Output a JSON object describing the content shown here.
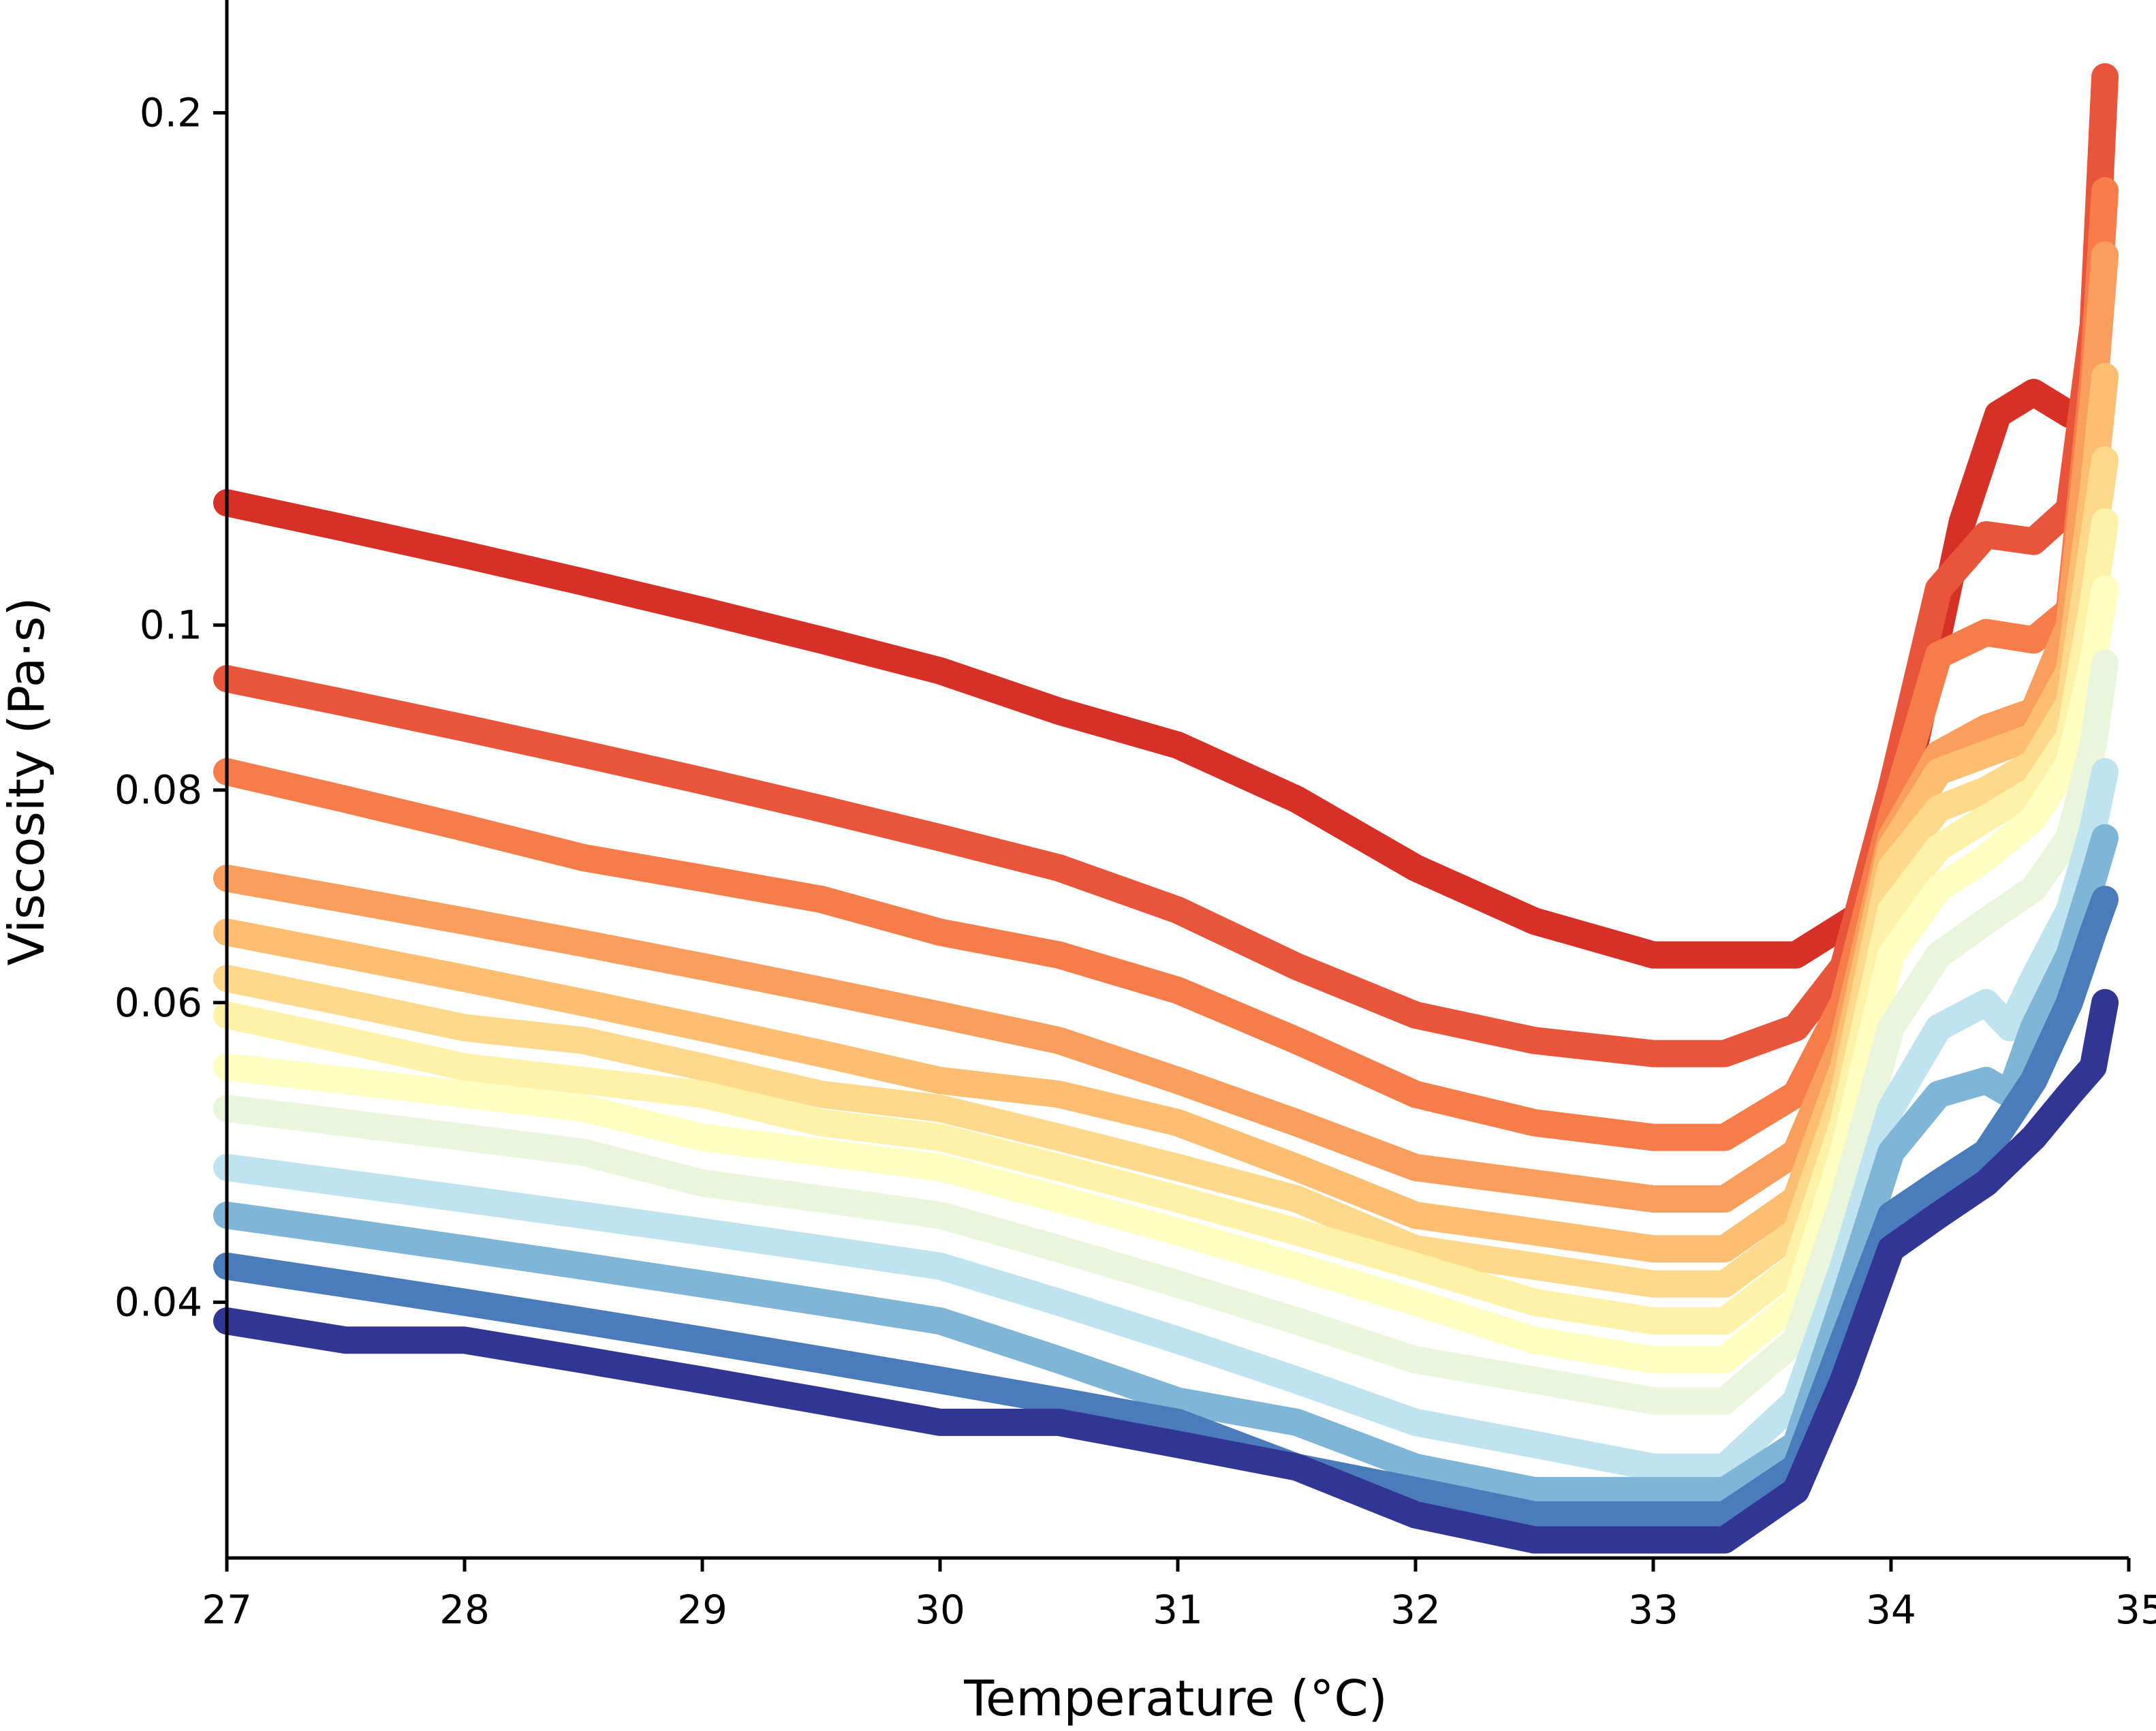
{
  "chart_data": {
    "type": "line",
    "title": "",
    "xlabel": "Temperature (°C)",
    "ylabel": "Viscosity (Pa·s)",
    "xlim": [
      27,
      35
    ],
    "ylim": [
      0.0283,
      0.233
    ],
    "yscale": "log",
    "grid": false,
    "legend": "none",
    "xticks": [
      27,
      28,
      29,
      30,
      31,
      32,
      33,
      34,
      35
    ],
    "xtick_labels": [
      "27",
      "28",
      "29",
      "30",
      "31",
      "32",
      "33",
      "34",
      "35"
    ],
    "yticks": [
      0.04,
      0.06,
      0.08,
      0.1,
      0.2
    ],
    "ytick_labels": [
      "0.04",
      "0.06",
      "0.08",
      "0.1",
      "0.2"
    ],
    "series": [
      {
        "color": "#d73027",
        "x": [
          27.0,
          27.5,
          28.0,
          28.5,
          29.0,
          29.5,
          30.0,
          30.5,
          31.0,
          31.5,
          32.0,
          32.5,
          33.0,
          33.3,
          33.6,
          33.9,
          34.1,
          34.3,
          34.45,
          34.6,
          34.75,
          34.85
        ],
        "y": [
          0.118,
          0.114,
          0.11,
          0.106,
          0.102,
          0.098,
          0.094,
          0.089,
          0.085,
          0.079,
          0.072,
          0.067,
          0.064,
          0.064,
          0.064,
          0.068,
          0.085,
          0.115,
          0.133,
          0.137,
          0.133,
          0.133
        ]
      },
      {
        "color": "#e8553a",
        "x": [
          27.0,
          27.5,
          28.0,
          28.5,
          29.0,
          29.5,
          30.0,
          30.5,
          31.0,
          31.5,
          32.0,
          32.5,
          33.0,
          33.3,
          33.6,
          33.8,
          34.0,
          34.2,
          34.4,
          34.6,
          34.75,
          34.85,
          34.9
        ],
        "y": [
          0.093,
          0.09,
          0.087,
          0.084,
          0.081,
          0.078,
          0.075,
          0.072,
          0.068,
          0.063,
          0.059,
          0.057,
          0.056,
          0.056,
          0.058,
          0.063,
          0.08,
          0.105,
          0.113,
          0.112,
          0.117,
          0.15,
          0.21
        ]
      },
      {
        "color": "#f67c4a",
        "x": [
          27.0,
          27.5,
          28.0,
          28.5,
          29.0,
          29.5,
          30.0,
          30.5,
          31.0,
          31.5,
          32.0,
          32.5,
          33.0,
          33.3,
          33.6,
          33.8,
          34.0,
          34.2,
          34.4,
          34.6,
          34.75,
          34.85,
          34.9
        ],
        "y": [
          0.082,
          0.079,
          0.076,
          0.073,
          0.071,
          0.069,
          0.066,
          0.064,
          0.061,
          0.057,
          0.053,
          0.051,
          0.05,
          0.05,
          0.053,
          0.06,
          0.077,
          0.096,
          0.099,
          0.098,
          0.102,
          0.14,
          0.18
        ]
      },
      {
        "color": "#fa9e5e",
        "x": [
          27.0,
          27.5,
          28.0,
          28.5,
          29.0,
          29.5,
          30.0,
          30.5,
          31.0,
          31.5,
          32.0,
          32.5,
          33.0,
          33.3,
          33.6,
          33.8,
          34.0,
          34.2,
          34.4,
          34.6,
          34.75,
          34.85,
          34.9
        ],
        "y": [
          0.071,
          0.069,
          0.067,
          0.065,
          0.063,
          0.061,
          0.059,
          0.057,
          0.054,
          0.051,
          0.048,
          0.047,
          0.046,
          0.046,
          0.049,
          0.057,
          0.075,
          0.084,
          0.087,
          0.089,
          0.1,
          0.135,
          0.165
        ]
      },
      {
        "color": "#fdbe72",
        "x": [
          27.0,
          27.5,
          28.0,
          28.5,
          29.0,
          29.5,
          30.0,
          30.5,
          31.0,
          31.5,
          32.0,
          32.5,
          33.0,
          33.3,
          33.6,
          33.8,
          34.0,
          34.2,
          34.4,
          34.6,
          34.75,
          34.85,
          34.9
        ],
        "y": [
          0.066,
          0.064,
          0.062,
          0.06,
          0.058,
          0.056,
          0.054,
          0.053,
          0.051,
          0.048,
          0.045,
          0.044,
          0.043,
          0.043,
          0.046,
          0.055,
          0.074,
          0.082,
          0.084,
          0.086,
          0.094,
          0.12,
          0.14
        ]
      },
      {
        "color": "#fed98b",
        "x": [
          27.0,
          27.5,
          28.0,
          28.5,
          29.0,
          29.5,
          30.0,
          30.5,
          31.0,
          31.5,
          32.0,
          32.5,
          33.0,
          33.3,
          33.6,
          33.8,
          34.0,
          34.2,
          34.4,
          34.6,
          34.75,
          34.85,
          34.9
        ],
        "y": [
          0.062,
          0.06,
          0.058,
          0.057,
          0.055,
          0.053,
          0.052,
          0.05,
          0.048,
          0.046,
          0.043,
          0.042,
          0.041,
          0.041,
          0.044,
          0.053,
          0.072,
          0.078,
          0.08,
          0.083,
          0.09,
          0.112,
          0.125
        ]
      },
      {
        "color": "#fef2a9",
        "x": [
          27.0,
          27.5,
          28.0,
          28.5,
          29.0,
          29.5,
          30.0,
          30.5,
          31.0,
          31.5,
          32.0,
          32.5,
          33.0,
          33.3,
          33.6,
          33.8,
          34.0,
          34.2,
          34.4,
          34.6,
          34.75,
          34.85,
          34.9
        ],
        "y": [
          0.059,
          0.057,
          0.055,
          0.054,
          0.053,
          0.051,
          0.05,
          0.048,
          0.046,
          0.044,
          0.042,
          0.04,
          0.039,
          0.039,
          0.042,
          0.051,
          0.068,
          0.074,
          0.077,
          0.08,
          0.086,
          0.103,
          0.115
        ]
      },
      {
        "color": "#fefec0",
        "x": [
          27.0,
          27.5,
          28.0,
          28.5,
          29.0,
          29.5,
          30.0,
          30.5,
          31.0,
          31.5,
          32.0,
          32.5,
          33.0,
          33.3,
          33.6,
          33.8,
          34.0,
          34.2,
          34.4,
          34.6,
          34.75,
          34.85,
          34.9
        ],
        "y": [
          0.055,
          0.054,
          0.053,
          0.052,
          0.05,
          0.049,
          0.048,
          0.046,
          0.044,
          0.042,
          0.04,
          0.038,
          0.037,
          0.037,
          0.04,
          0.049,
          0.064,
          0.07,
          0.073,
          0.077,
          0.083,
          0.095,
          0.105
        ]
      },
      {
        "color": "#eaf6dc",
        "x": [
          27.0,
          27.5,
          28.0,
          28.5,
          29.0,
          29.5,
          30.0,
          30.5,
          31.0,
          31.5,
          32.0,
          32.5,
          33.0,
          33.3,
          33.6,
          33.8,
          34.0,
          34.2,
          34.4,
          34.6,
          34.75,
          34.85,
          34.9
        ],
        "y": [
          0.052,
          0.051,
          0.05,
          0.049,
          0.047,
          0.046,
          0.045,
          0.043,
          0.041,
          0.039,
          0.037,
          0.036,
          0.035,
          0.035,
          0.038,
          0.046,
          0.058,
          0.064,
          0.067,
          0.07,
          0.075,
          0.085,
          0.095
        ]
      },
      {
        "color": "#bfe4ef",
        "x": [
          27.0,
          27.5,
          28.0,
          28.5,
          29.0,
          29.5,
          30.0,
          30.5,
          31.0,
          31.5,
          32.0,
          32.5,
          33.0,
          33.3,
          33.6,
          33.8,
          34.0,
          34.2,
          34.4,
          34.5,
          34.6,
          34.75,
          34.85,
          34.9
        ],
        "y": [
          0.048,
          0.047,
          0.046,
          0.045,
          0.044,
          0.043,
          0.042,
          0.04,
          0.038,
          0.036,
          0.034,
          0.033,
          0.032,
          0.032,
          0.035,
          0.042,
          0.052,
          0.058,
          0.06,
          0.058,
          0.062,
          0.068,
          0.076,
          0.082
        ]
      },
      {
        "color": "#7fb5d6",
        "x": [
          27.0,
          27.5,
          28.0,
          28.5,
          29.0,
          29.5,
          30.0,
          30.5,
          31.0,
          31.5,
          32.0,
          32.5,
          33.0,
          33.3,
          33.6,
          33.8,
          34.0,
          34.2,
          34.4,
          34.5,
          34.6,
          34.75,
          34.85,
          34.9
        ],
        "y": [
          0.045,
          0.044,
          0.043,
          0.042,
          0.041,
          0.04,
          0.039,
          0.037,
          0.035,
          0.034,
          0.032,
          0.031,
          0.031,
          0.031,
          0.033,
          0.04,
          0.049,
          0.053,
          0.054,
          0.053,
          0.058,
          0.064,
          0.071,
          0.075
        ]
      },
      {
        "color": "#4a7cbb",
        "x": [
          27.0,
          27.5,
          28.0,
          28.5,
          29.0,
          29.5,
          30.0,
          30.5,
          31.0,
          31.5,
          32.0,
          32.5,
          33.0,
          33.3,
          33.6,
          33.8,
          34.0,
          34.2,
          34.4,
          34.6,
          34.75,
          34.85,
          34.9
        ],
        "y": [
          0.042,
          0.041,
          0.04,
          0.039,
          0.038,
          0.037,
          0.036,
          0.035,
          0.034,
          0.032,
          0.031,
          0.03,
          0.03,
          0.03,
          0.032,
          0.038,
          0.045,
          0.047,
          0.049,
          0.054,
          0.06,
          0.066,
          0.069
        ]
      },
      {
        "color": "#313695",
        "x": [
          27.0,
          27.5,
          28.0,
          28.5,
          29.0,
          29.5,
          30.0,
          30.5,
          31.0,
          31.5,
          32.0,
          32.5,
          33.0,
          33.3,
          33.6,
          33.8,
          34.0,
          34.2,
          34.4,
          34.6,
          34.75,
          34.85,
          34.9
        ],
        "y": [
          0.039,
          0.038,
          0.038,
          0.037,
          0.036,
          0.035,
          0.034,
          0.034,
          0.033,
          0.032,
          0.03,
          0.029,
          0.029,
          0.029,
          0.031,
          0.036,
          0.043,
          0.045,
          0.047,
          0.05,
          0.053,
          0.055,
          0.06
        ]
      }
    ]
  }
}
